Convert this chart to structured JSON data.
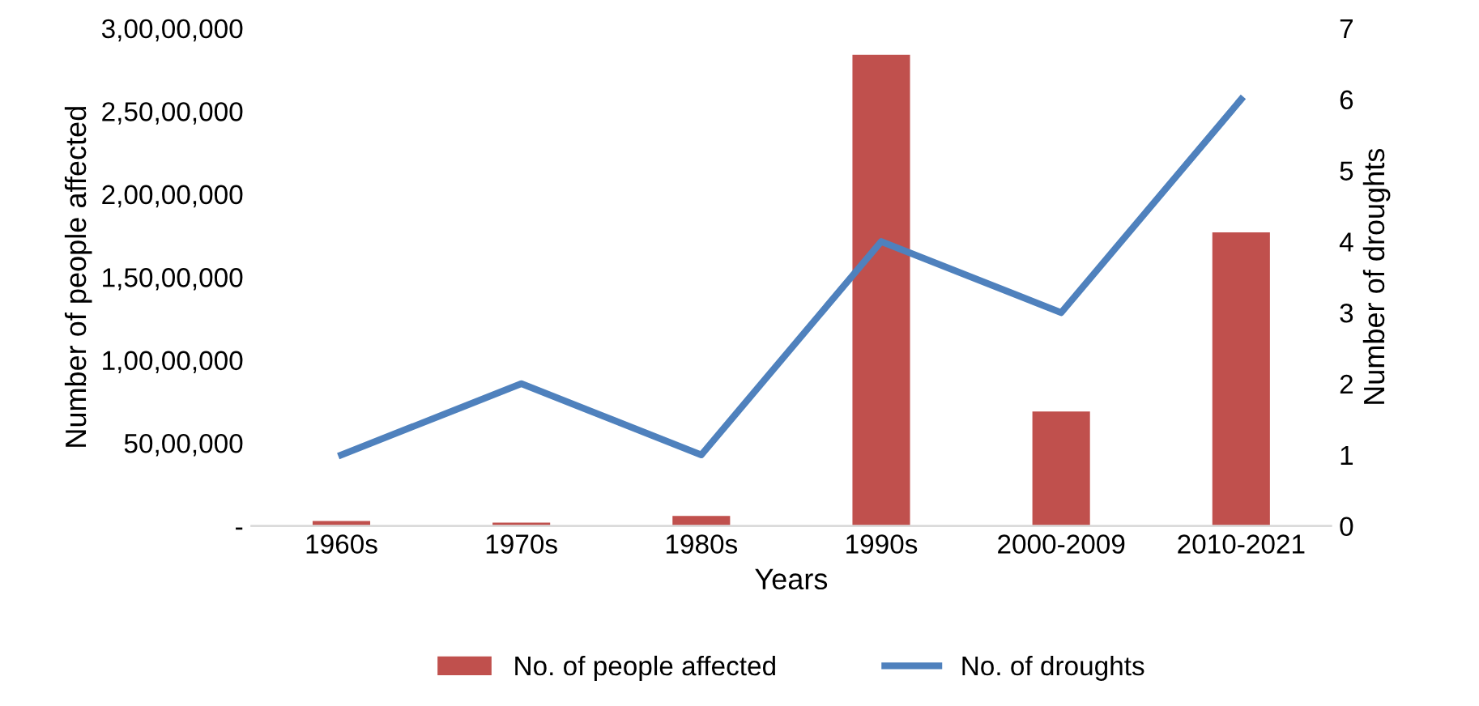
{
  "chart_data": {
    "type": "bar",
    "xlabel": "Years",
    "ylabel": "Number of people affected",
    "y2label": "Number of droughts",
    "categories": [
      "1960s",
      "1970s",
      "1980s",
      "1990s",
      "2000-2009",
      "2010-2021"
    ],
    "series": [
      {
        "name": "No. of people affected",
        "color": "#c0504d",
        "values": [
          300000,
          200000,
          600000,
          28400000,
          6900000,
          17700000
        ]
      },
      {
        "name": "No. of droughts",
        "type": "line",
        "axis": "y2",
        "color": "#4f81bd",
        "values": [
          1,
          2,
          1,
          4,
          3,
          6
        ]
      }
    ],
    "ylim": [
      0,
      30000000
    ],
    "yticks": [
      {
        "value": 0,
        "label": "-"
      },
      {
        "value": 5000000,
        "label": "50,00,000"
      },
      {
        "value": 10000000,
        "label": "1,00,00,000"
      },
      {
        "value": 15000000,
        "label": "1,50,00,000"
      },
      {
        "value": 20000000,
        "label": "2,00,00,000"
      },
      {
        "value": 25000000,
        "label": "2,50,00,000"
      },
      {
        "value": 30000000,
        "label": "3,00,00,000"
      }
    ],
    "y2lim": [
      0,
      7
    ],
    "y2ticks": [
      0,
      1,
      2,
      3,
      4,
      5,
      6,
      7
    ],
    "legend": "bottom",
    "grid": false,
    "marker": "none",
    "line_style": "solid"
  }
}
